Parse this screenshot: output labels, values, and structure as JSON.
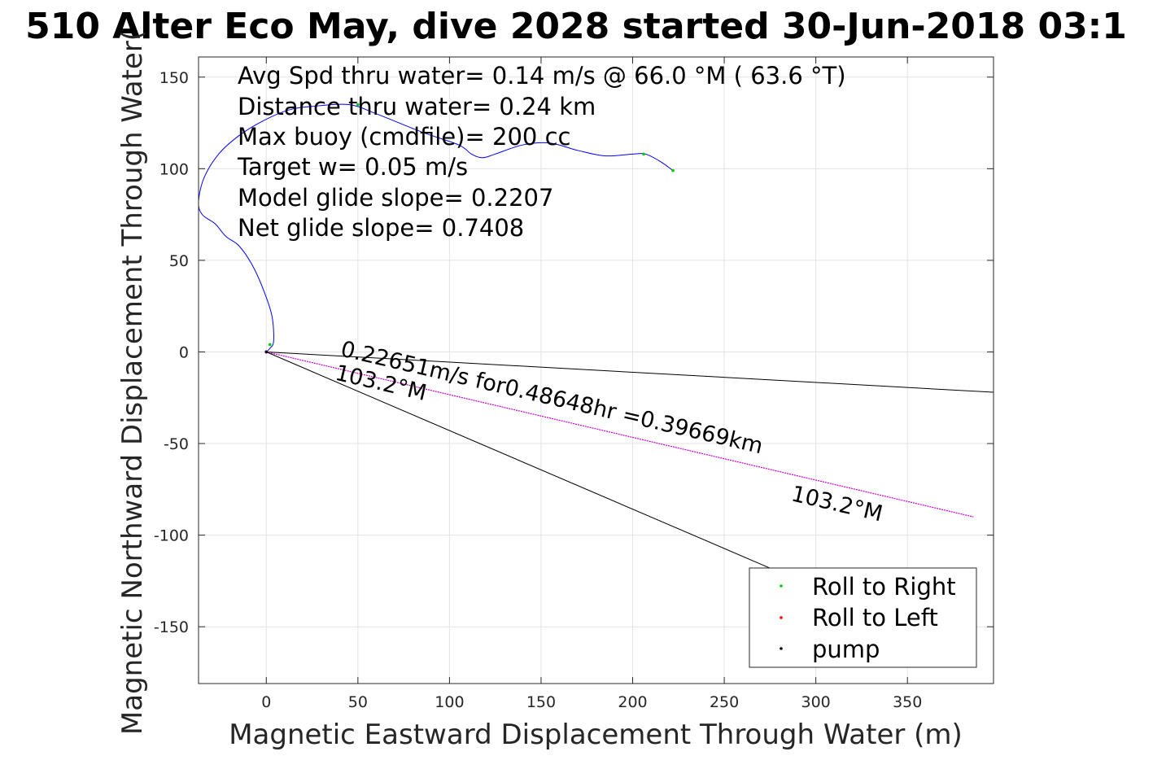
{
  "chart_data": {
    "type": "line",
    "title": "510 Alter Eco May, dive 2028 started 30-Jun-2018 03:1",
    "xlabel": "Magnetic Eastward Displacement Through Water (m)",
    "ylabel": "Magnetic Northward Displacement Through Water(",
    "xlim": [
      -37,
      397
    ],
    "ylim": [
      -181,
      161
    ],
    "xticks": [
      0,
      50,
      100,
      150,
      200,
      250,
      300,
      350
    ],
    "yticks": [
      150,
      100,
      50,
      0,
      -50,
      -100,
      -150
    ],
    "xtick_labels": [
      "0",
      "50",
      "100",
      "150",
      "200",
      "250",
      "300",
      "350"
    ],
    "ytick_labels": [
      "150",
      "100",
      "50",
      "0",
      "-50",
      "-100",
      "-150"
    ],
    "grid": true,
    "info_lines": [
      "Avg Spd thru water=  0.14 m/s @  66.0 °M ( 63.6 °T)",
      "Distance thru water=  0.24 km",
      "Max buoy (cmdfile)= 200 cc",
      "Target w= 0.05 m/s",
      "Model glide slope= 0.2207",
      "Net glide slope= 0.7408"
    ],
    "track": {
      "color": "#0000ff",
      "x": [
        0,
        2,
        4,
        3,
        -2,
        -8,
        -15,
        -22,
        -28,
        -35,
        -37,
        -34,
        -26,
        -15,
        -2,
        12,
        25,
        45,
        60,
        85,
        105,
        112,
        118,
        125,
        140,
        155,
        170,
        185,
        200,
        207,
        215,
        222
      ],
      "y": [
        0,
        2,
        6,
        20,
        35,
        48,
        58,
        63,
        70,
        75,
        82,
        95,
        108,
        118,
        126,
        132,
        134,
        135,
        130,
        120,
        113,
        108,
        106,
        108,
        113,
        114,
        110,
        107,
        108,
        108,
        104,
        99
      ]
    },
    "roll_right_points": {
      "color": "#00cc00",
      "x": [
        2,
        50,
        206,
        222
      ],
      "y": [
        4,
        135,
        108,
        99
      ]
    },
    "roll_left_points": {
      "color": "#ff0000",
      "x": [
        0
      ],
      "y": [
        0
      ]
    },
    "pump_points": {
      "color": "#000000",
      "x": [
        0
      ],
      "y": [
        0
      ]
    },
    "current_vector": {
      "color": "#cc00cc",
      "x": [
        0,
        386
      ],
      "y": [
        0,
        -90
      ]
    },
    "reference_lines": [
      {
        "color": "#000000",
        "x": [
          0,
          397
        ],
        "y": [
          0,
          -22
        ]
      },
      {
        "color": "#000000",
        "x": [
          0,
          275
        ],
        "y": [
          0,
          -118
        ]
      }
    ],
    "annotations": [
      {
        "text": "0.22651m/s for0.48648hr =0.39669km",
        "x": 40,
        "y": -2,
        "angle_deg": 13.1
      },
      {
        "text": "103.2°M",
        "x": 37,
        "y": -15,
        "angle_deg": 13.1
      },
      {
        "text": "103.2°M",
        "x": 286,
        "y": -81,
        "angle_deg": 13.1
      }
    ],
    "legend": {
      "position": "bottom-right",
      "entries": [
        {
          "label": "Roll to Right",
          "color": "#00cc00"
        },
        {
          "label": "Roll to Left",
          "color": "#ff0000"
        },
        {
          "label": "pump",
          "color": "#000000"
        }
      ]
    }
  }
}
